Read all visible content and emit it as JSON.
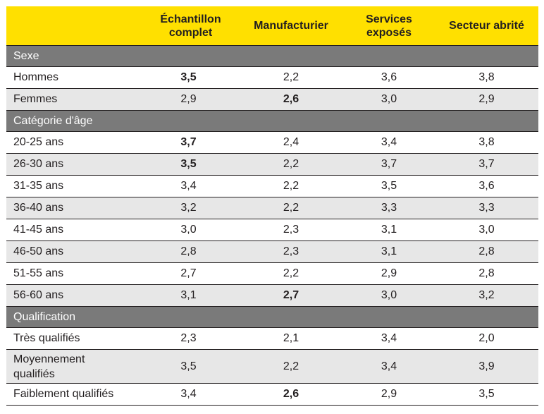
{
  "headers": [
    "",
    "Échantillon complet",
    "Manufacturier",
    "Services exposés",
    "Secteur abrité"
  ],
  "sections": [
    {
      "title": "Sexe",
      "rows": [
        {
          "label": "Hommes",
          "values": [
            "3,5",
            "2,2",
            "3,6",
            "3,8"
          ],
          "bold": [
            true,
            false,
            false,
            false
          ]
        },
        {
          "label": "Femmes",
          "values": [
            "2,9",
            "2,6",
            "3,0",
            "2,9"
          ],
          "bold": [
            false,
            true,
            false,
            false
          ]
        }
      ]
    },
    {
      "title": "Catégorie d'âge",
      "rows": [
        {
          "label": "20-25 ans",
          "values": [
            "3,7",
            "2,4",
            "3,4",
            "3,8"
          ],
          "bold": [
            true,
            false,
            false,
            false
          ]
        },
        {
          "label": "26-30 ans",
          "values": [
            "3,5",
            "2,2",
            "3,7",
            "3,7"
          ],
          "bold": [
            true,
            false,
            false,
            false
          ]
        },
        {
          "label": "31-35 ans",
          "values": [
            "3,4",
            "2,2",
            "3,5",
            "3,6"
          ],
          "bold": [
            false,
            false,
            false,
            false
          ]
        },
        {
          "label": "36-40 ans",
          "values": [
            "3,2",
            "2,2",
            "3,3",
            "3,3"
          ],
          "bold": [
            false,
            false,
            false,
            false
          ]
        },
        {
          "label": "41-45 ans",
          "values": [
            "3,0",
            "2,3",
            "3,1",
            "3,0"
          ],
          "bold": [
            false,
            false,
            false,
            false
          ]
        },
        {
          "label": "46-50 ans",
          "values": [
            "2,8",
            "2,3",
            "3,1",
            "2,8"
          ],
          "bold": [
            false,
            false,
            false,
            false
          ]
        },
        {
          "label": "51-55 ans",
          "values": [
            "2,7",
            "2,2",
            "2,9",
            "2,8"
          ],
          "bold": [
            false,
            false,
            false,
            false
          ]
        },
        {
          "label": "56-60 ans",
          "values": [
            "3,1",
            "2,7",
            "3,0",
            "3,2"
          ],
          "bold": [
            false,
            true,
            false,
            false
          ]
        }
      ]
    },
    {
      "title": "Qualification",
      "rows": [
        {
          "label": "Très qualifiés",
          "values": [
            "2,3",
            "2,1",
            "3,4",
            "2,0"
          ],
          "bold": [
            false,
            false,
            false,
            false
          ]
        },
        {
          "label": "Moyennement qualifiés",
          "values": [
            "3,5",
            "2,2",
            "3,4",
            "3,9"
          ],
          "bold": [
            false,
            false,
            false,
            false
          ]
        },
        {
          "label": "Faiblement qualifiés",
          "values": [
            "3,4",
            "2,6",
            "2,9",
            "3,5"
          ],
          "bold": [
            false,
            true,
            false,
            false
          ]
        }
      ]
    }
  ],
  "colors": {
    "header_bg": "#ffe000",
    "section_bg": "#7a7a7a",
    "row_shade": "#e7e7e7",
    "text": "#231f20"
  }
}
